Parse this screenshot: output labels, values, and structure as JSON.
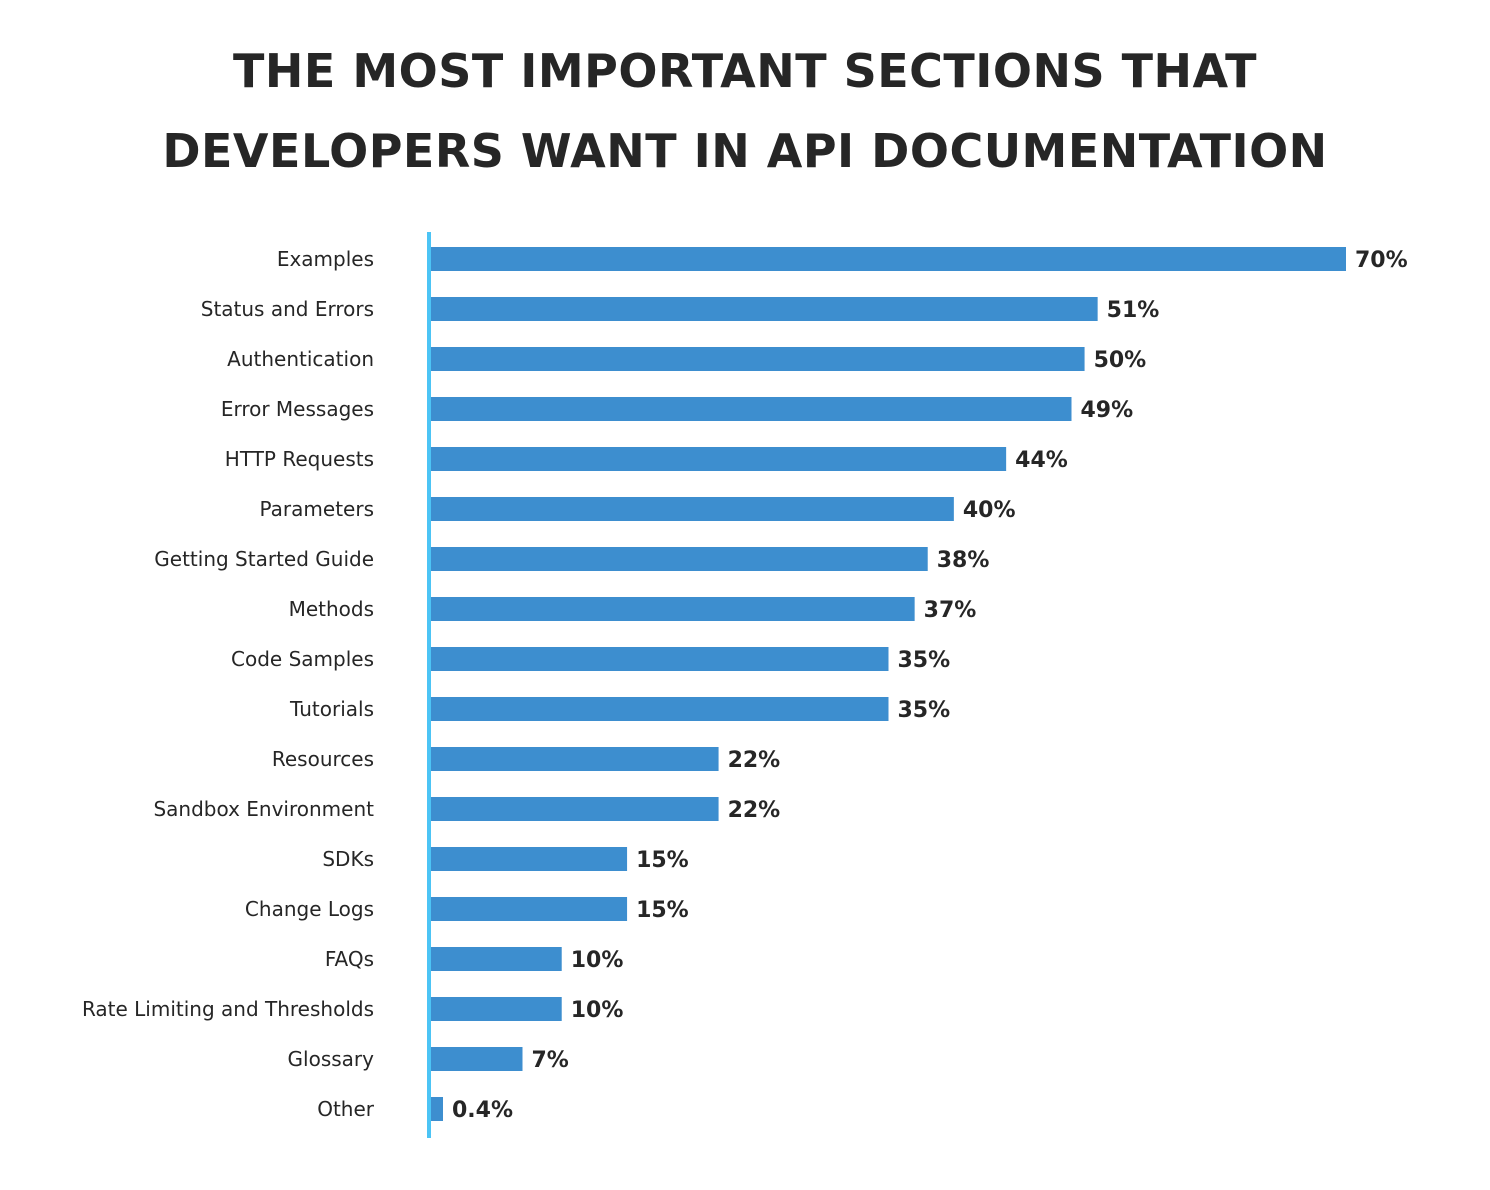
{
  "chart_data": {
    "type": "bar",
    "orientation": "horizontal",
    "title_lines": [
      "THE MOST IMPORTANT SECTIONS THAT",
      "DEVELOPERS WANT IN API DOCUMENTATION"
    ],
    "xlabel": "",
    "ylabel": "",
    "xlim": [
      0,
      70
    ],
    "grid": false,
    "categories": [
      "Examples",
      "Status and Errors",
      "Authentication",
      "Error Messages",
      "HTTP Requests",
      "Parameters",
      "Getting Started Guide",
      "Methods",
      "Code Samples",
      "Tutorials",
      "Resources",
      "Sandbox Environment",
      "SDKs",
      "Change Logs",
      "FAQs",
      "Rate Limiting and Thresholds",
      "Glossary",
      "Other"
    ],
    "values": [
      70,
      51,
      50,
      49,
      44,
      40,
      38,
      37,
      35,
      35,
      22,
      22,
      15,
      15,
      10,
      10,
      7,
      0.4
    ],
    "data_labels": [
      "70%",
      "51%",
      "50%",
      "49%",
      "44%",
      "40%",
      "38%",
      "37%",
      "35%",
      "35%",
      "22%",
      "22%",
      "15%",
      "15%",
      "10%",
      "10%",
      "7%",
      "0.4%"
    ],
    "colors": {
      "bar": "#3d8ecf",
      "axis": "#4cc4f5",
      "text": "#262626"
    }
  }
}
